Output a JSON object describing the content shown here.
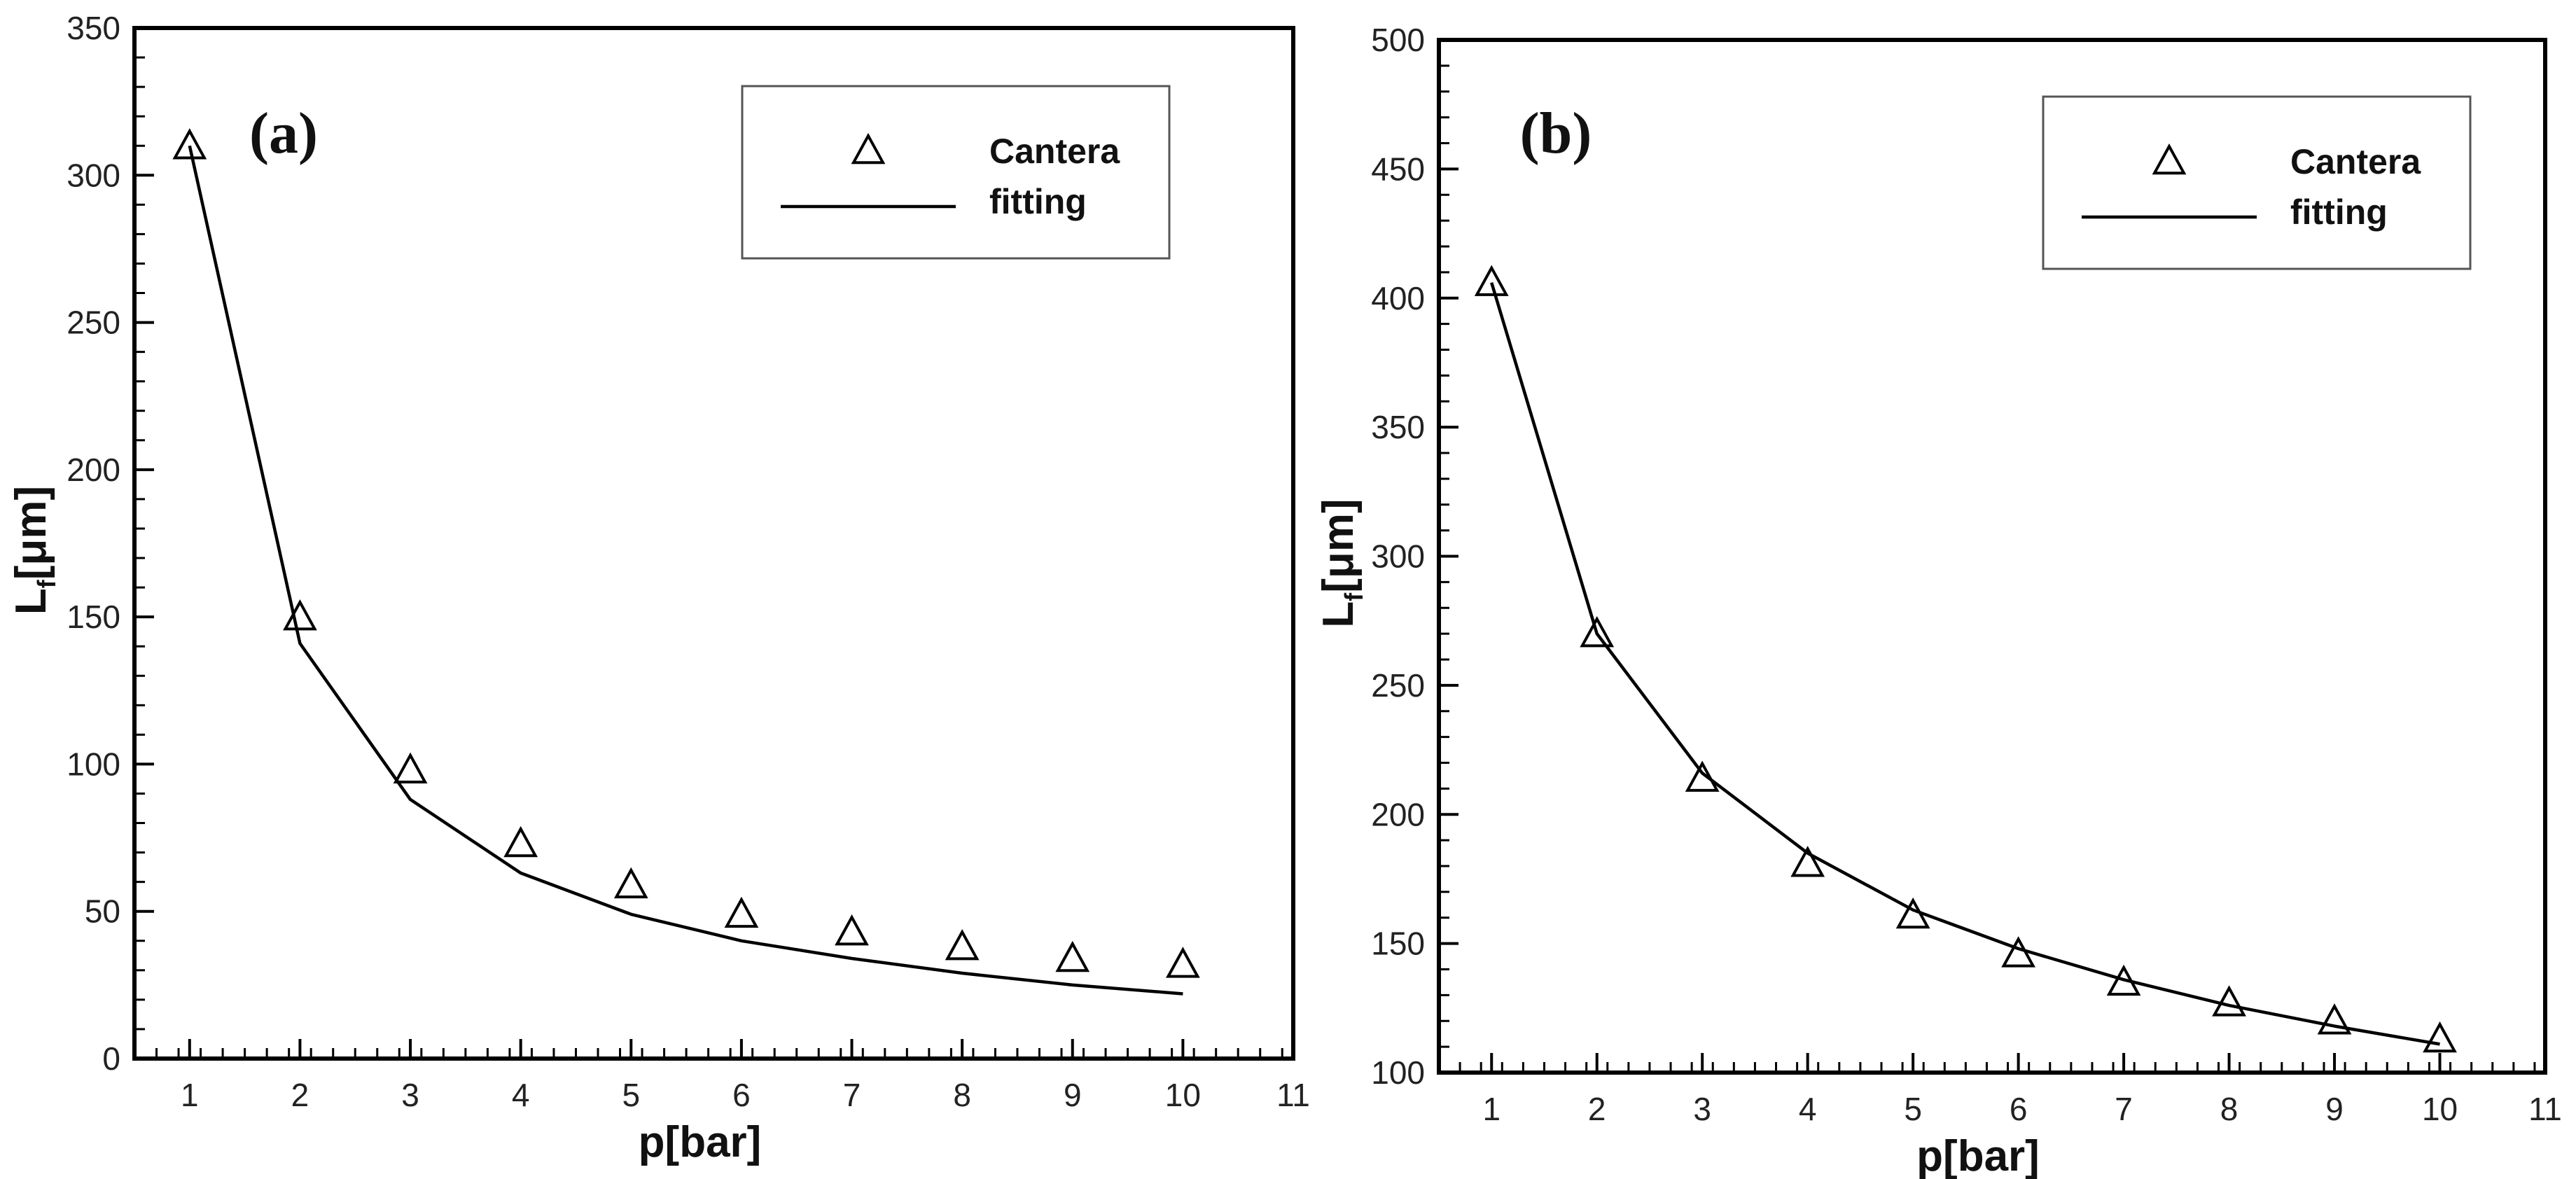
{
  "chart_data": [
    {
      "type": "line",
      "panel_label": "(a)",
      "xlabel": "p[bar]",
      "ylabel": {
        "main": "L",
        "sub": "f",
        "rest": "[μm]"
      },
      "xlim": [
        0.5,
        11
      ],
      "ylim": [
        0,
        350
      ],
      "xticks": [
        1,
        2,
        3,
        4,
        5,
        6,
        7,
        8,
        9,
        10,
        11
      ],
      "yticks": [
        0,
        50,
        100,
        150,
        200,
        250,
        300,
        350
      ],
      "legend": {
        "position": "top-right",
        "entries": [
          "Cantera",
          "fitting"
        ]
      },
      "series": [
        {
          "name": "Cantera",
          "style": "triangle-markers",
          "x": [
            1,
            2,
            3,
            4,
            5,
            6,
            7,
            8,
            9,
            10
          ],
          "y": [
            310,
            150,
            98,
            73,
            59,
            49,
            43,
            38,
            34,
            32
          ]
        },
        {
          "name": "fitting",
          "style": "line",
          "x": [
            1,
            2,
            3,
            4,
            5,
            6,
            7,
            8,
            9,
            10
          ],
          "y": [
            310,
            141,
            88,
            63,
            49,
            40,
            34,
            29,
            25,
            22
          ]
        }
      ]
    },
    {
      "type": "line",
      "panel_label": "(b)",
      "xlabel": "p[bar]",
      "ylabel": {
        "main": "L",
        "sub": "f",
        "rest": "[μm]"
      },
      "xlim": [
        0.5,
        11
      ],
      "ylim": [
        100,
        500
      ],
      "xticks": [
        1,
        2,
        3,
        4,
        5,
        6,
        7,
        8,
        9,
        10,
        11
      ],
      "yticks": [
        100,
        150,
        200,
        250,
        300,
        350,
        400,
        450,
        500
      ],
      "legend": {
        "position": "top-right",
        "entries": [
          "Cantera",
          "fitting"
        ]
      },
      "series": [
        {
          "name": "Cantera",
          "style": "triangle-markers",
          "x": [
            1,
            2,
            3,
            4,
            5,
            6,
            7,
            8,
            9,
            10
          ],
          "y": [
            406,
            270,
            214,
            181,
            161,
            146,
            135,
            127,
            120,
            113
          ]
        },
        {
          "name": "fitting",
          "style": "line",
          "x": [
            1,
            2,
            3,
            4,
            5,
            6,
            7,
            8,
            9,
            10
          ],
          "y": [
            406,
            270,
            216,
            185,
            163,
            148,
            136,
            126,
            118,
            111
          ]
        }
      ]
    }
  ]
}
